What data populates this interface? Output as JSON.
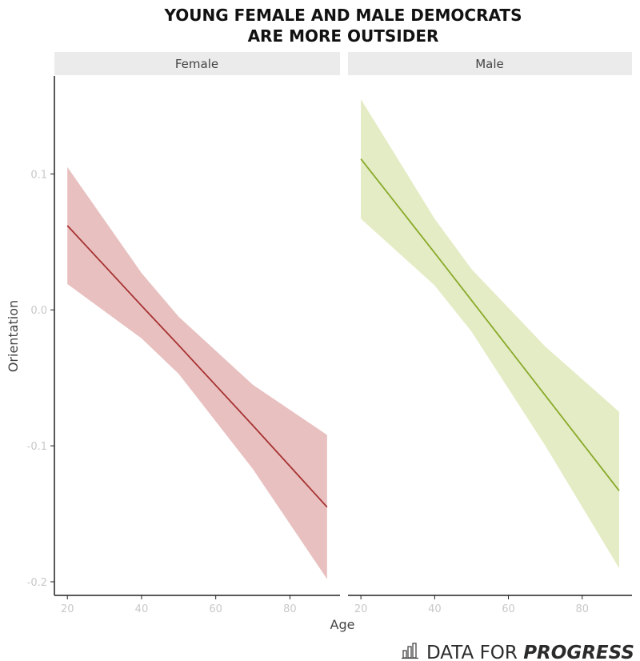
{
  "chart_data": {
    "type": "line",
    "title": [
      "YOUNG FEMALE AND MALE DEMOCRATS",
      "ARE MORE OUTSIDER"
    ],
    "xlabel": "Age",
    "ylabel": "Orientation",
    "xlim": [
      16.5,
      93.5
    ],
    "ylim": [
      -0.21,
      0.172
    ],
    "xticks": [
      20,
      40,
      60,
      80
    ],
    "xtick_labels": [
      "20",
      "40",
      "60",
      "80"
    ],
    "yticks": [
      0.1,
      0.0,
      -0.1,
      -0.2
    ],
    "ytick_labels": [
      "0.1",
      "0.0",
      "-0.1",
      "-0.2"
    ],
    "grid": false,
    "panels": [
      {
        "name": "Female",
        "color": "#a83232",
        "band_color": "#e8c0c0",
        "x": [
          20,
          40,
          50,
          70,
          90
        ],
        "fit": [
          0.062,
          0.003,
          -0.026,
          -0.085,
          -0.145
        ],
        "upper": [
          0.105,
          0.027,
          -0.005,
          -0.055,
          -0.092
        ],
        "lower": [
          0.019,
          -0.021,
          -0.047,
          -0.117,
          -0.198
        ]
      },
      {
        "name": "Male",
        "color": "#8aaa2a",
        "band_color": "#e3ecc4",
        "x": [
          20,
          40,
          50,
          70,
          90
        ],
        "fit": [
          0.111,
          0.042,
          0.007,
          -0.063,
          -0.133
        ],
        "upper": [
          0.155,
          0.067,
          0.03,
          -0.027,
          -0.075
        ],
        "lower": [
          0.067,
          0.018,
          -0.016,
          -0.1,
          -0.19
        ]
      }
    ]
  },
  "logo": {
    "text_regular": "DATA FOR ",
    "text_bold": "PROGRESS",
    "icon": "bar-chart-icon"
  }
}
